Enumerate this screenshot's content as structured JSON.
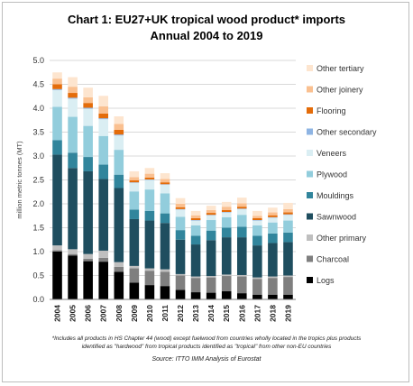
{
  "chart_data": {
    "type": "bar",
    "stacked": true,
    "title": "Chart 1: EU27+UK tropical wood product* imports",
    "subtitle": "Annual 2004 to 2019",
    "ylabel": "million metric tonnes (MT)",
    "xlabel": "",
    "ylim": [
      0,
      5
    ],
    "yticks": [
      "0.0",
      "0.5",
      "1.0",
      "1.5",
      "2.0",
      "2.5",
      "3.0",
      "3.5",
      "4.0",
      "4.5",
      "5.0"
    ],
    "grid": true,
    "legend_position": "right",
    "categories": [
      "2004",
      "2005",
      "2006",
      "2007",
      "2008",
      "2009",
      "2010",
      "2011",
      "2012",
      "2013",
      "2014",
      "2015",
      "2016",
      "2017",
      "2018",
      "2019"
    ],
    "series": [
      {
        "name": "Logs",
        "color": "#000000",
        "values": [
          1.0,
          0.92,
          0.8,
          0.79,
          0.58,
          0.35,
          0.3,
          0.28,
          0.2,
          0.15,
          0.14,
          0.17,
          0.13,
          0.1,
          0.1,
          0.1
        ]
      },
      {
        "name": "Charcoal",
        "color": "#7f7f7f",
        "values": [
          0.03,
          0.03,
          0.05,
          0.08,
          0.1,
          0.3,
          0.3,
          0.3,
          0.3,
          0.3,
          0.32,
          0.32,
          0.35,
          0.33,
          0.35,
          0.37
        ]
      },
      {
        "name": "Other primary",
        "color": "#bfbfbf",
        "values": [
          0.1,
          0.1,
          0.1,
          0.15,
          0.1,
          0.05,
          0.05,
          0.05,
          0.03,
          0.03,
          0.03,
          0.03,
          0.03,
          0.03,
          0.03,
          0.03
        ]
      },
      {
        "name": "Sawnwood",
        "color": "#1f4e5f",
        "values": [
          1.9,
          1.7,
          1.73,
          1.5,
          1.55,
          0.98,
          1.0,
          0.97,
          0.72,
          0.67,
          0.75,
          0.78,
          0.79,
          0.67,
          0.7,
          0.7
        ]
      },
      {
        "name": "Mouldings",
        "color": "#31859c",
        "values": [
          0.3,
          0.32,
          0.3,
          0.3,
          0.28,
          0.2,
          0.2,
          0.2,
          0.2,
          0.18,
          0.2,
          0.2,
          0.22,
          0.2,
          0.2,
          0.2
        ]
      },
      {
        "name": "Plywood",
        "color": "#92cddc",
        "values": [
          0.7,
          0.75,
          0.65,
          0.6,
          0.52,
          0.38,
          0.45,
          0.42,
          0.28,
          0.22,
          0.22,
          0.22,
          0.25,
          0.22,
          0.23,
          0.25
        ]
      },
      {
        "name": "Veneers",
        "color": "#daeef3",
        "values": [
          0.35,
          0.38,
          0.36,
          0.35,
          0.3,
          0.18,
          0.2,
          0.18,
          0.15,
          0.1,
          0.1,
          0.1,
          0.12,
          0.1,
          0.1,
          0.12
        ]
      },
      {
        "name": "Other secondary",
        "color": "#8eb4e3",
        "values": [
          0.02,
          0.02,
          0.02,
          0.02,
          0.02,
          0.01,
          0.01,
          0.01,
          0.01,
          0.01,
          0.01,
          0.01,
          0.01,
          0.01,
          0.01,
          0.01
        ]
      },
      {
        "name": "Flooring",
        "color": "#e46c0a",
        "values": [
          0.1,
          0.1,
          0.1,
          0.1,
          0.1,
          0.04,
          0.04,
          0.04,
          0.04,
          0.04,
          0.04,
          0.04,
          0.04,
          0.04,
          0.04,
          0.04
        ]
      },
      {
        "name": "Other joinery",
        "color": "#fac090",
        "values": [
          0.12,
          0.13,
          0.12,
          0.15,
          0.12,
          0.07,
          0.08,
          0.07,
          0.07,
          0.06,
          0.06,
          0.07,
          0.07,
          0.05,
          0.06,
          0.07
        ]
      },
      {
        "name": "Other tertiary",
        "color": "#fde5cf",
        "values": [
          0.13,
          0.2,
          0.2,
          0.22,
          0.16,
          0.12,
          0.12,
          0.12,
          0.12,
          0.09,
          0.09,
          0.1,
          0.12,
          0.1,
          0.1,
          0.13
        ]
      }
    ]
  },
  "notes": {
    "line1": "*Includes all products in HS Chapter 44 (wood) except fuelwood from countries wholly located in the tropics plus products",
    "line2": "identified as \"hardwood\" from tropical products identified as \"tropical\" from other non-EU countries",
    "source": "Source: ITTO IMM Analysis of Eurostat"
  }
}
